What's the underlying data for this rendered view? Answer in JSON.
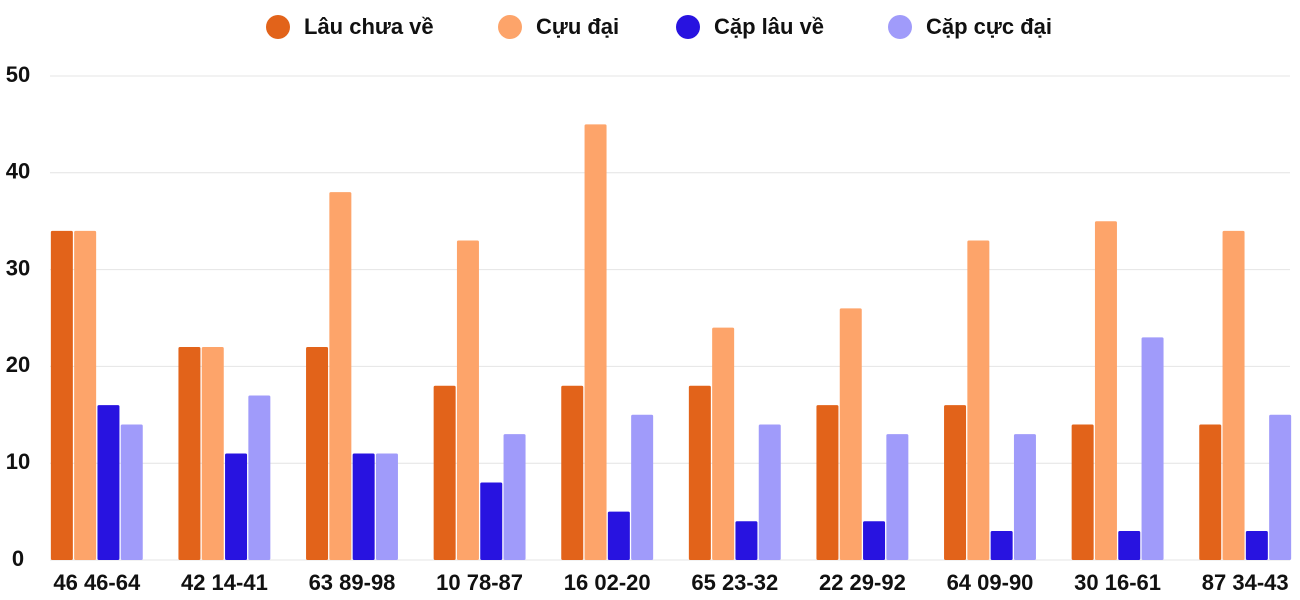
{
  "chart_data": {
    "type": "bar",
    "categories": [
      "46 46-64",
      "42 14-41",
      "63 89-98",
      "10 78-87",
      "16 02-20",
      "65 23-32",
      "22 29-92",
      "64 09-90",
      "30 16-61",
      "87 34-43"
    ],
    "series": [
      {
        "name": "Lâu chưa về",
        "color": "#e2631a",
        "values": [
          34,
          22,
          22,
          18,
          18,
          18,
          16,
          16,
          14,
          14
        ]
      },
      {
        "name": "Cựu đại",
        "color": "#fda46a",
        "values": [
          34,
          22,
          38,
          33,
          45,
          24,
          26,
          33,
          35,
          34
        ]
      },
      {
        "name": "Cặp lâu về",
        "color": "#2813e0",
        "values": [
          16,
          11,
          11,
          8,
          5,
          4,
          4,
          3,
          3,
          3
        ]
      },
      {
        "name": "Cặp cực đại",
        "color": "#a09bfa",
        "values": [
          14,
          17,
          11,
          13,
          15,
          14,
          13,
          13,
          23,
          15
        ]
      }
    ],
    "ylim": [
      0,
      50
    ],
    "yticks": [
      0,
      10,
      20,
      30,
      40,
      50
    ],
    "grid": true,
    "legend": "top"
  }
}
